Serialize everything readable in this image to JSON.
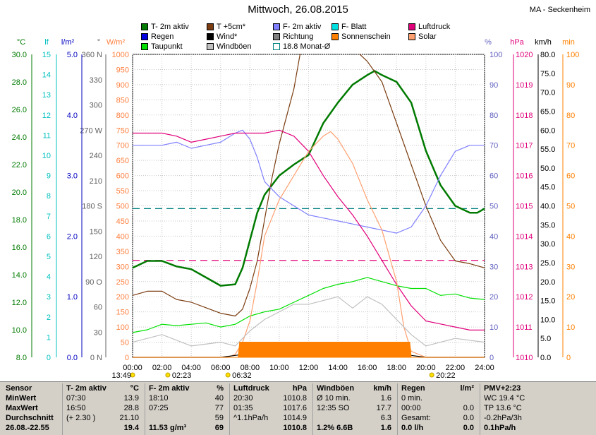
{
  "header": {
    "title": "Mittwoch, 26.08.2015",
    "station": "MA - Seckenheim"
  },
  "legend": [
    {
      "label": "T- 2m aktiv",
      "color": "#007a00"
    },
    {
      "label": "T +5cm*",
      "color": "#7a3c10"
    },
    {
      "label": "F- 2m aktiv",
      "color": "#8080ff"
    },
    {
      "label": "F- Blatt",
      "color": "#00e0e0"
    },
    {
      "label": "Luftdruck",
      "color": "#e0007a"
    },
    {
      "label": "Regen",
      "color": "#0000e0"
    },
    {
      "label": "Wind*",
      "color": "#000000"
    },
    {
      "label": "Richtung",
      "color": "#808080"
    },
    {
      "label": "Sonnenschein",
      "color": "#ff8000"
    },
    {
      "label": "Solar",
      "color": "#ffa070"
    },
    {
      "label": "Taupunkt",
      "color": "#00e000"
    },
    {
      "label": "Windböen",
      "color": "#c0c0c0"
    },
    {
      "label": "18.8 Monat-Ø",
      "color": "#ffffff"
    }
  ],
  "chart_data": {
    "type": "line",
    "title": "Mittwoch, 26.08.2015",
    "x_ticks": [
      "00:00",
      "02:00",
      "04:00",
      "06:00",
      "08:00",
      "10:00",
      "12:00",
      "14:00",
      "16:00",
      "18:00",
      "20:00",
      "22:00",
      "24:00"
    ],
    "x_range_hours": [
      0,
      24
    ],
    "axes": {
      "temp_c": {
        "unit": "°C",
        "range": [
          8,
          30
        ],
        "ticks": [
          "30.0",
          "28.0",
          "26.0",
          "24.0",
          "22.0",
          "20.0",
          "18.0",
          "16.0",
          "14.0",
          "12.0",
          "10.0",
          "8.0"
        ]
      },
      "leaf": {
        "unit": "lf",
        "range": [
          0,
          15
        ],
        "ticks": [
          "15",
          "14",
          "13",
          "12",
          "11",
          "10",
          "9",
          "8",
          "7",
          "6",
          "5",
          "4",
          "3",
          "2",
          "1",
          "0"
        ]
      },
      "rain": {
        "unit": "l/m²",
        "range": [
          0,
          5
        ],
        "ticks": [
          "5.0",
          "4.0",
          "3.0",
          "2.0",
          "1.0",
          "0.0"
        ]
      },
      "direction": {
        "unit": "°",
        "range": [
          0,
          360
        ],
        "ticks": [
          "360 N",
          "330",
          "300",
          "270 W",
          "240",
          "210",
          "180 S",
          "150",
          "120",
          "90 O",
          "60",
          "30",
          "0 N"
        ]
      },
      "solar": {
        "unit": "W/m²",
        "range": [
          0,
          1000
        ],
        "ticks": [
          "1000",
          "950",
          "900",
          "850",
          "800",
          "750",
          "700",
          "650",
          "600",
          "550",
          "500",
          "450",
          "400",
          "350",
          "300",
          "250",
          "200",
          "150",
          "100",
          "50",
          "0"
        ]
      },
      "humidity": {
        "unit": "%",
        "range": [
          0,
          100
        ],
        "ticks": [
          "100",
          "90",
          "80",
          "70",
          "60",
          "50",
          "40",
          "30",
          "20",
          "10",
          "0"
        ]
      },
      "pressure": {
        "unit": "hPa",
        "range": [
          1010,
          1020
        ],
        "ticks": [
          "1020",
          "1019",
          "1018",
          "1017",
          "1016",
          "1015",
          "1014",
          "1013",
          "1012",
          "1011",
          "1010"
        ]
      },
      "wind": {
        "unit": "km/h",
        "range": [
          0,
          80
        ],
        "ticks": [
          "80.0",
          "75.0",
          "70.0",
          "65.0",
          "60.0",
          "55.0",
          "50.0",
          "45.0",
          "40.0",
          "35.0",
          "30.0",
          "25.0",
          "20.0",
          "15.0",
          "10.0",
          "5.0",
          "0.0"
        ]
      },
      "minutes": {
        "unit": "min",
        "range": [
          0,
          100
        ],
        "ticks": [
          "100",
          "90",
          "80",
          "70",
          "60",
          "50",
          "40",
          "30",
          "20",
          "10",
          "0"
        ]
      }
    },
    "series": [
      {
        "name": "T- 2m aktiv",
        "axis": "temp_c",
        "color": "#007a00",
        "x": [
          0,
          1,
          2,
          3,
          4,
          5,
          6,
          7,
          7.5,
          8,
          8.5,
          9,
          10,
          11,
          12,
          13,
          14,
          15,
          16,
          16.5,
          17,
          18,
          19,
          20,
          21,
          22,
          23,
          23.5,
          24
        ],
        "y": [
          14.5,
          15.0,
          15.0,
          14.6,
          14.4,
          13.8,
          13.2,
          13.3,
          14.5,
          16.5,
          18.5,
          19.8,
          21.2,
          22.0,
          22.7,
          25.0,
          26.5,
          27.8,
          28.5,
          28.8,
          28.5,
          28.0,
          26.5,
          23.0,
          20.5,
          19.0,
          18.5,
          18.5,
          18.8
        ]
      },
      {
        "name": "T +5cm*",
        "axis": "temp_c",
        "color": "#7a3c10",
        "x": [
          0,
          1,
          2,
          3,
          4,
          5,
          6,
          7,
          7.5,
          8,
          8.5,
          9,
          9.5,
          10,
          10.5,
          11,
          11.5,
          12,
          12.5,
          13,
          14,
          15,
          16,
          17,
          18,
          19,
          20,
          21,
          22,
          23,
          24
        ],
        "y": [
          12.5,
          12.8,
          12.8,
          12.2,
          12.0,
          11.6,
          11.2,
          11.0,
          11.5,
          13.0,
          15.0,
          18.0,
          21.0,
          23.5,
          25.5,
          27.5,
          30.5,
          33,
          36,
          38,
          31,
          30.5,
          29.5,
          28.0,
          25.0,
          22.0,
          19.0,
          16.5,
          15.0,
          14.8,
          14.5
        ]
      },
      {
        "name": "F- 2m aktiv",
        "axis": "humidity",
        "color": "#8080ff",
        "x": [
          0,
          1,
          2,
          3,
          4,
          5,
          6,
          7,
          7.5,
          8,
          8.5,
          9,
          10,
          11,
          12,
          13,
          14,
          15,
          16,
          17,
          18,
          19,
          20,
          21,
          22,
          23,
          24
        ],
        "y": [
          70,
          70,
          70,
          71,
          69,
          70,
          71,
          74,
          75,
          72,
          66,
          58,
          53,
          50,
          47,
          46,
          45,
          44,
          43,
          42,
          41,
          43,
          50,
          60,
          68,
          70,
          70
        ]
      },
      {
        "name": "Luftdruck",
        "axis": "pressure",
        "color": "#e0007a",
        "x": [
          0,
          1,
          2,
          3,
          4,
          5,
          6,
          7,
          8,
          9,
          10,
          11,
          12,
          13,
          14,
          15,
          16,
          17,
          18,
          19,
          20,
          21,
          22,
          23,
          24
        ],
        "y": [
          1017.4,
          1017.4,
          1017.4,
          1017.3,
          1017.1,
          1017.2,
          1017.3,
          1017.4,
          1017.4,
          1017.4,
          1017.5,
          1017.3,
          1016.8,
          1016.0,
          1015.3,
          1014.7,
          1014.0,
          1013.2,
          1012.4,
          1011.7,
          1011.2,
          1011.1,
          1011.0,
          1010.9,
          1010.9
        ]
      },
      {
        "name": "Taupunkt",
        "axis": "temp_c",
        "color": "#00e000",
        "x": [
          0,
          1,
          2,
          3,
          4,
          5,
          6,
          7,
          8,
          9,
          10,
          11,
          12,
          13,
          14,
          15,
          16,
          17,
          18,
          19,
          20,
          21,
          22,
          23,
          24
        ],
        "y": [
          9.8,
          10.0,
          10.4,
          10.3,
          10.4,
          10.5,
          10.2,
          10.4,
          11.0,
          11.3,
          11.5,
          12.0,
          12.5,
          13.0,
          13.3,
          13.5,
          13.8,
          13.5,
          13.2,
          13.0,
          13.0,
          12.5,
          12.6,
          12.3,
          12.2
        ]
      },
      {
        "name": "Solar",
        "axis": "solar",
        "color": "#ffa070",
        "x": [
          0,
          6.5,
          7,
          7.5,
          8,
          8.5,
          9,
          10,
          11,
          12,
          13,
          13.5,
          14,
          15,
          16,
          17,
          18,
          18.5,
          19,
          20,
          24
        ],
        "y": [
          0,
          0,
          10,
          50,
          120,
          250,
          400,
          520,
          600,
          680,
          730,
          745,
          720,
          640,
          520,
          420,
          250,
          100,
          20,
          0,
          0
        ]
      },
      {
        "name": "Windböen",
        "axis": "wind",
        "color": "#c0c0c0",
        "x": [
          0,
          2,
          4,
          6,
          7,
          8,
          9,
          10,
          11,
          12,
          13,
          14,
          15,
          16,
          17,
          18,
          19,
          20,
          22,
          24
        ],
        "y": [
          4,
          6,
          3,
          4,
          3,
          7,
          10,
          12,
          14,
          14,
          15,
          16,
          13,
          16,
          14,
          10,
          6,
          3,
          5,
          4
        ]
      },
      {
        "name": "Wind*",
        "axis": "wind",
        "color": "#000000",
        "x": [
          0,
          6,
          7,
          8,
          9,
          10,
          11,
          12,
          13,
          14,
          15,
          16,
          17,
          18,
          19,
          20,
          24
        ],
        "y": [
          0,
          0,
          0.5,
          1,
          1.5,
          2,
          2.5,
          3,
          2.5,
          2.5,
          2.5,
          2,
          1.5,
          1,
          0.5,
          0,
          0
        ]
      },
      {
        "name": "Sonnenschein",
        "axis": "minutes",
        "color": "#ff8000",
        "x": [
          0,
          7.2,
          7.3,
          18.9,
          19.0,
          24
        ],
        "y": [
          0,
          0,
          5,
          5,
          0,
          0
        ]
      }
    ],
    "reference_lines": [
      {
        "name": "18.8 Monat-Ø",
        "axis": "temp_c",
        "value": 18.8,
        "color": "#008080"
      },
      {
        "name": "Luftdruck Monat-Ø",
        "axis": "pressure",
        "value": 1013.2,
        "color": "#e0007a"
      }
    ],
    "markers": [
      {
        "label": "13:49",
        "x": 0
      },
      {
        "label": "02:23",
        "x": 2.4
      },
      {
        "label": "06:32",
        "x": 6.5
      },
      {
        "label": "20:22",
        "x": 20.4
      }
    ],
    "grid": true
  },
  "stats": {
    "rows": [
      "Sensor",
      "MinWert",
      "MaxWert",
      "Durchschnitt",
      "26.08.-22.55"
    ],
    "panels": [
      {
        "title": "T- 2m aktiv",
        "unit": "°C",
        "cells": [
          [
            "07:30",
            "13.9"
          ],
          [
            "16:50",
            "28.8"
          ],
          [
            "(+ 2.30 )",
            "21.10"
          ],
          [
            "",
            "19.4"
          ]
        ]
      },
      {
        "title": "F- 2m aktiv",
        "unit": "%",
        "cells": [
          [
            "18:10",
            "40"
          ],
          [
            "07:25",
            "77"
          ],
          [
            "",
            "59"
          ],
          [
            "11.53 g/m³",
            "69"
          ]
        ]
      },
      {
        "title": "Luftdruck",
        "unit": "hPa",
        "cells": [
          [
            "20:30",
            "1010.8"
          ],
          [
            "01:35",
            "1017.6"
          ],
          [
            "^1.1hPa/h",
            "1014.9"
          ],
          [
            "",
            "1010.8"
          ]
        ]
      },
      {
        "title": "Windböen",
        "unit": "km/h",
        "cells": [
          [
            "Ø 10 min.",
            "1.6"
          ],
          [
            "12:35  SO",
            "17.7"
          ],
          [
            "",
            "6.3"
          ],
          [
            "1.2% 6.6B",
            "1.6"
          ]
        ]
      },
      {
        "title": "Regen",
        "unit": "l/m²",
        "cells": [
          [
            "0 min.",
            ""
          ],
          [
            "00:00",
            "0.0"
          ],
          [
            "Gesamt:",
            "0.0"
          ],
          [
            "0.0 l/h",
            "0.0"
          ]
        ]
      },
      {
        "title": "PMV+2:23",
        "unit": "",
        "cells": [
          [
            "WC 19.4 °C",
            ""
          ],
          [
            "TP 13.6 °C",
            ""
          ],
          [
            "-0.2hPa/3h",
            ""
          ],
          [
            "0.1hPa/h",
            ""
          ]
        ]
      }
    ]
  }
}
